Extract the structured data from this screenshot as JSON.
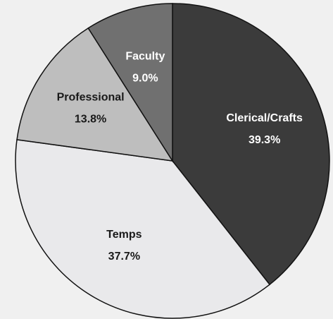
{
  "chart_data": {
    "type": "pie",
    "categories": [
      "Clerical/Crafts",
      "Temps",
      "Professional",
      "Faculty"
    ],
    "values": [
      39.3,
      37.7,
      13.8,
      9.0
    ],
    "value_labels": [
      "39.3%",
      "37.7%",
      "13.8%",
      "9.0%"
    ],
    "colors": [
      "#3b3b3b",
      "#e9e9eb",
      "#bebebe",
      "#707070"
    ],
    "label_colors": [
      "#ffffff",
      "#1a1a1a",
      "#1a1a1a",
      "#ffffff"
    ]
  }
}
